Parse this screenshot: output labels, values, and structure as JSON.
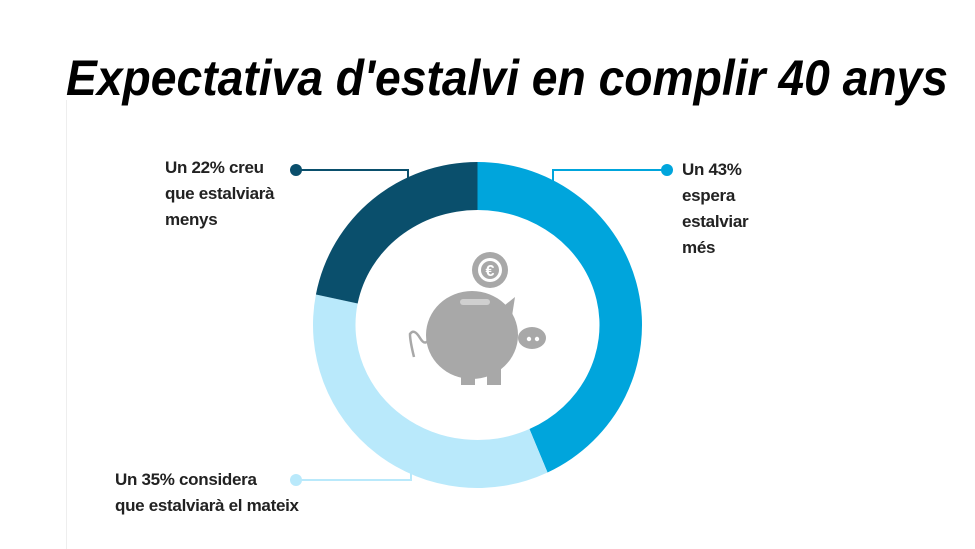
{
  "chart_data": {
    "type": "pie",
    "variant": "donut",
    "title": "Expectativa d'estalvi en complir 40 anys",
    "slices": [
      {
        "name": "espera estalviar més",
        "value": 43,
        "color": "#00a5dc",
        "label_lines": [
          "Un 43%",
          "espera",
          "estalviar",
          "més"
        ]
      },
      {
        "name": "considera que estalviarà el mateix",
        "value": 35,
        "color": "#b9e9fb",
        "label_lines": [
          "Un 35% considera",
          "que estalviarà el mateix"
        ]
      },
      {
        "name": "creu que estalviarà menys",
        "value": 22,
        "color": "#0a4f6c",
        "label_lines": [
          "Un 22% creu",
          "que estalviarà",
          "menys"
        ]
      }
    ],
    "center_icon": "piggy-bank-euro-icon",
    "icon_color": "#a8a8a8"
  }
}
